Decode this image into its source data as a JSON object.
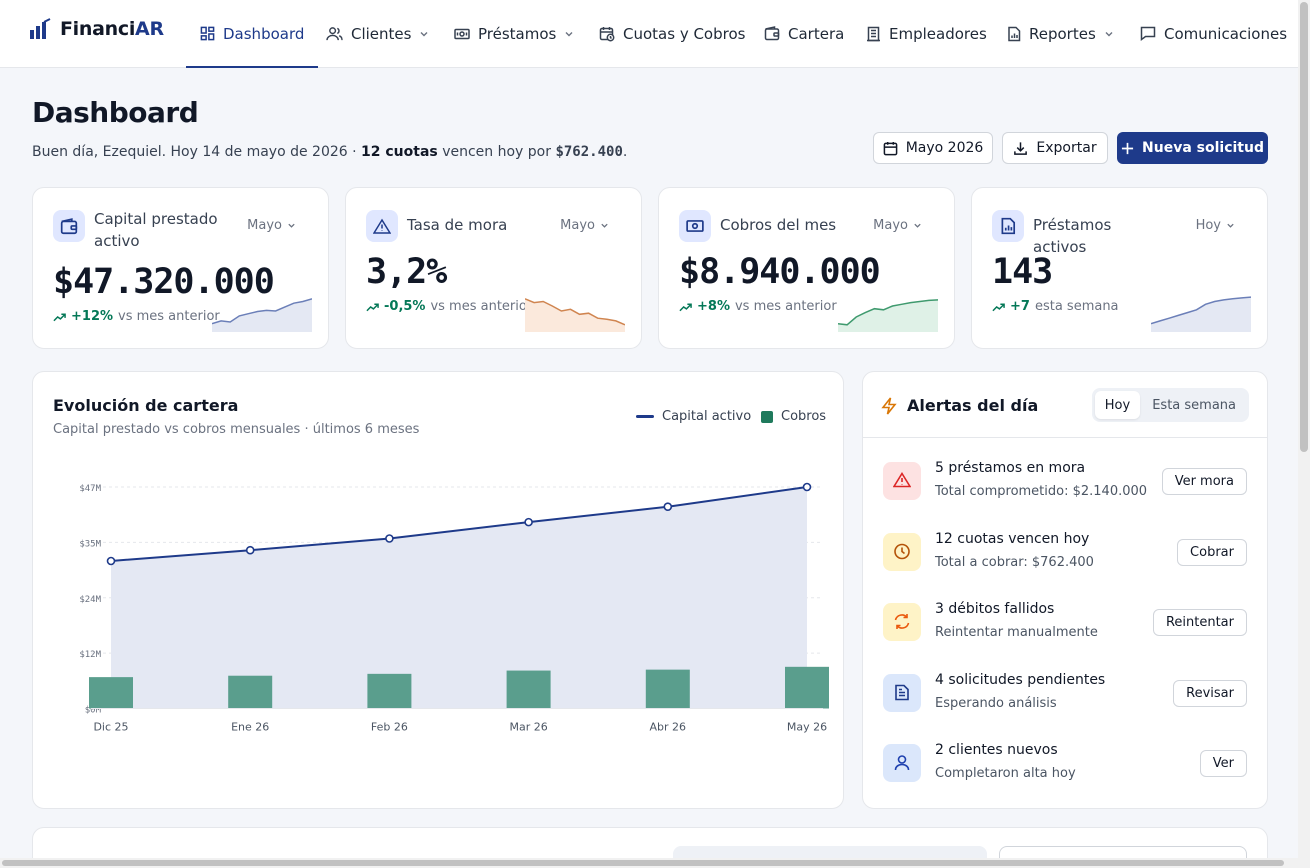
{
  "app": {
    "brand_main": "Financi",
    "brand_accent": "AR"
  },
  "nav": {
    "dashboard": "Dashboard",
    "clientes": "Clientes",
    "prestamos": "Préstamos",
    "cuotas": "Cuotas y Cobros",
    "cartera": "Cartera",
    "empleadores": "Empleadores",
    "reportes": "Reportes",
    "comunicaciones": "Comunicaciones"
  },
  "header": {
    "title": "Dashboard",
    "greeting_pre": "Buen día, Ezequiel. Hoy 14 de mayo de 2026 · ",
    "greeting_bold": "12 cuotas",
    "greeting_mid": " vencen hoy por ",
    "greeting_amount": "$762.400",
    "greeting_end": ".",
    "period_button": "Mayo 2026",
    "export_button": "Exportar",
    "new_button": "Nueva solicitud"
  },
  "kpis": {
    "capital": {
      "label": "Capital prestado activo",
      "period": "Mayo",
      "value": "$47.320.000",
      "delta": "+12%",
      "delta_text": "vs mes anterior",
      "spark": [
        3,
        4,
        3.6,
        5.8,
        6.6,
        7.4,
        7.8,
        7.6,
        9,
        10.4,
        11,
        12
      ]
    },
    "mora": {
      "label": "Tasa de mora",
      "period": "Mayo",
      "value": "3,2%",
      "delta": "-0,5%",
      "delta_text": "vs mes anterior",
      "spark": [
        12,
        10.6,
        11,
        9.4,
        7.6,
        8.2,
        6.4,
        6.8,
        5,
        4.6,
        4,
        2.6
      ]
    },
    "cobros": {
      "label": "Cobros del mes",
      "period": "Mayo",
      "value": "$8.940.000",
      "delta": "+8%",
      "delta_text": "vs mes anterior",
      "spark": [
        3,
        2.6,
        5.4,
        7,
        8.4,
        8,
        9.4,
        10,
        10.6,
        11,
        11.4,
        11.6
      ]
    },
    "activos": {
      "label": "Préstamos activos",
      "period": "Hoy",
      "value": "143",
      "delta": "+7",
      "delta_text": "esta semana",
      "spark": [
        3,
        4,
        5,
        6,
        7,
        8,
        10,
        11,
        11.6,
        12,
        12.3,
        12.6
      ]
    }
  },
  "colors": {
    "primary": "#1e3a8a",
    "success": "#047857",
    "bar": "#5a9e8d",
    "line": "#1e3a8a",
    "area": "#e4e8f3"
  },
  "chart_data": {
    "type": "bar",
    "title": "Evolución de cartera",
    "subtitle": "Capital prestado vs cobros mensuales · últimos 6 meses",
    "categories": [
      "Dic 25",
      "Ene 26",
      "Feb 26",
      "Mar 26",
      "Abr 26",
      "May 26"
    ],
    "series": [
      {
        "name": "Capital activo",
        "type": "area-line",
        "values": [
          31.5,
          33.8,
          36.3,
          39.8,
          43.1,
          47.3
        ]
      },
      {
        "name": "Cobros",
        "type": "bar",
        "values": [
          6.7,
          7.0,
          7.4,
          8.1,
          8.3,
          8.9
        ]
      }
    ],
    "y_ticks": [
      "$0M",
      "$12M",
      "$24M",
      "$35M",
      "$47M"
    ],
    "ylim": [
      0,
      47.3
    ],
    "legend": "top-right",
    "grid": true
  },
  "alerts": {
    "title": "Alertas del día",
    "tab_today": "Hoy",
    "tab_week": "Esta semana",
    "items": [
      {
        "title": "5 préstamos en mora",
        "sub": "Total comprometido: $2.140.000",
        "action": "Ver mora",
        "icon": "alert-triangle-icon",
        "bg": "#fde2e2",
        "fg": "#dc2626"
      },
      {
        "title": "12 cuotas vencen hoy",
        "sub": "Total a cobrar: $762.400",
        "action": "Cobrar",
        "icon": "clock-icon",
        "bg": "#fef3c7",
        "fg": "#b45309"
      },
      {
        "title": "3 débitos fallidos",
        "sub": "Reintentar manualmente",
        "action": "Reintentar",
        "icon": "refresh-icon",
        "bg": "#fef3c7",
        "fg": "#ea580c"
      },
      {
        "title": "4 solicitudes pendientes",
        "sub": "Esperando análisis",
        "action": "Revisar",
        "icon": "document-icon",
        "bg": "#dbe7fb",
        "fg": "#1e3a8a"
      },
      {
        "title": "2 clientes nuevos",
        "sub": "Completaron alta hoy",
        "action": "Ver",
        "icon": "user-icon",
        "bg": "#dbe7fb",
        "fg": "#1e40af"
      }
    ]
  }
}
